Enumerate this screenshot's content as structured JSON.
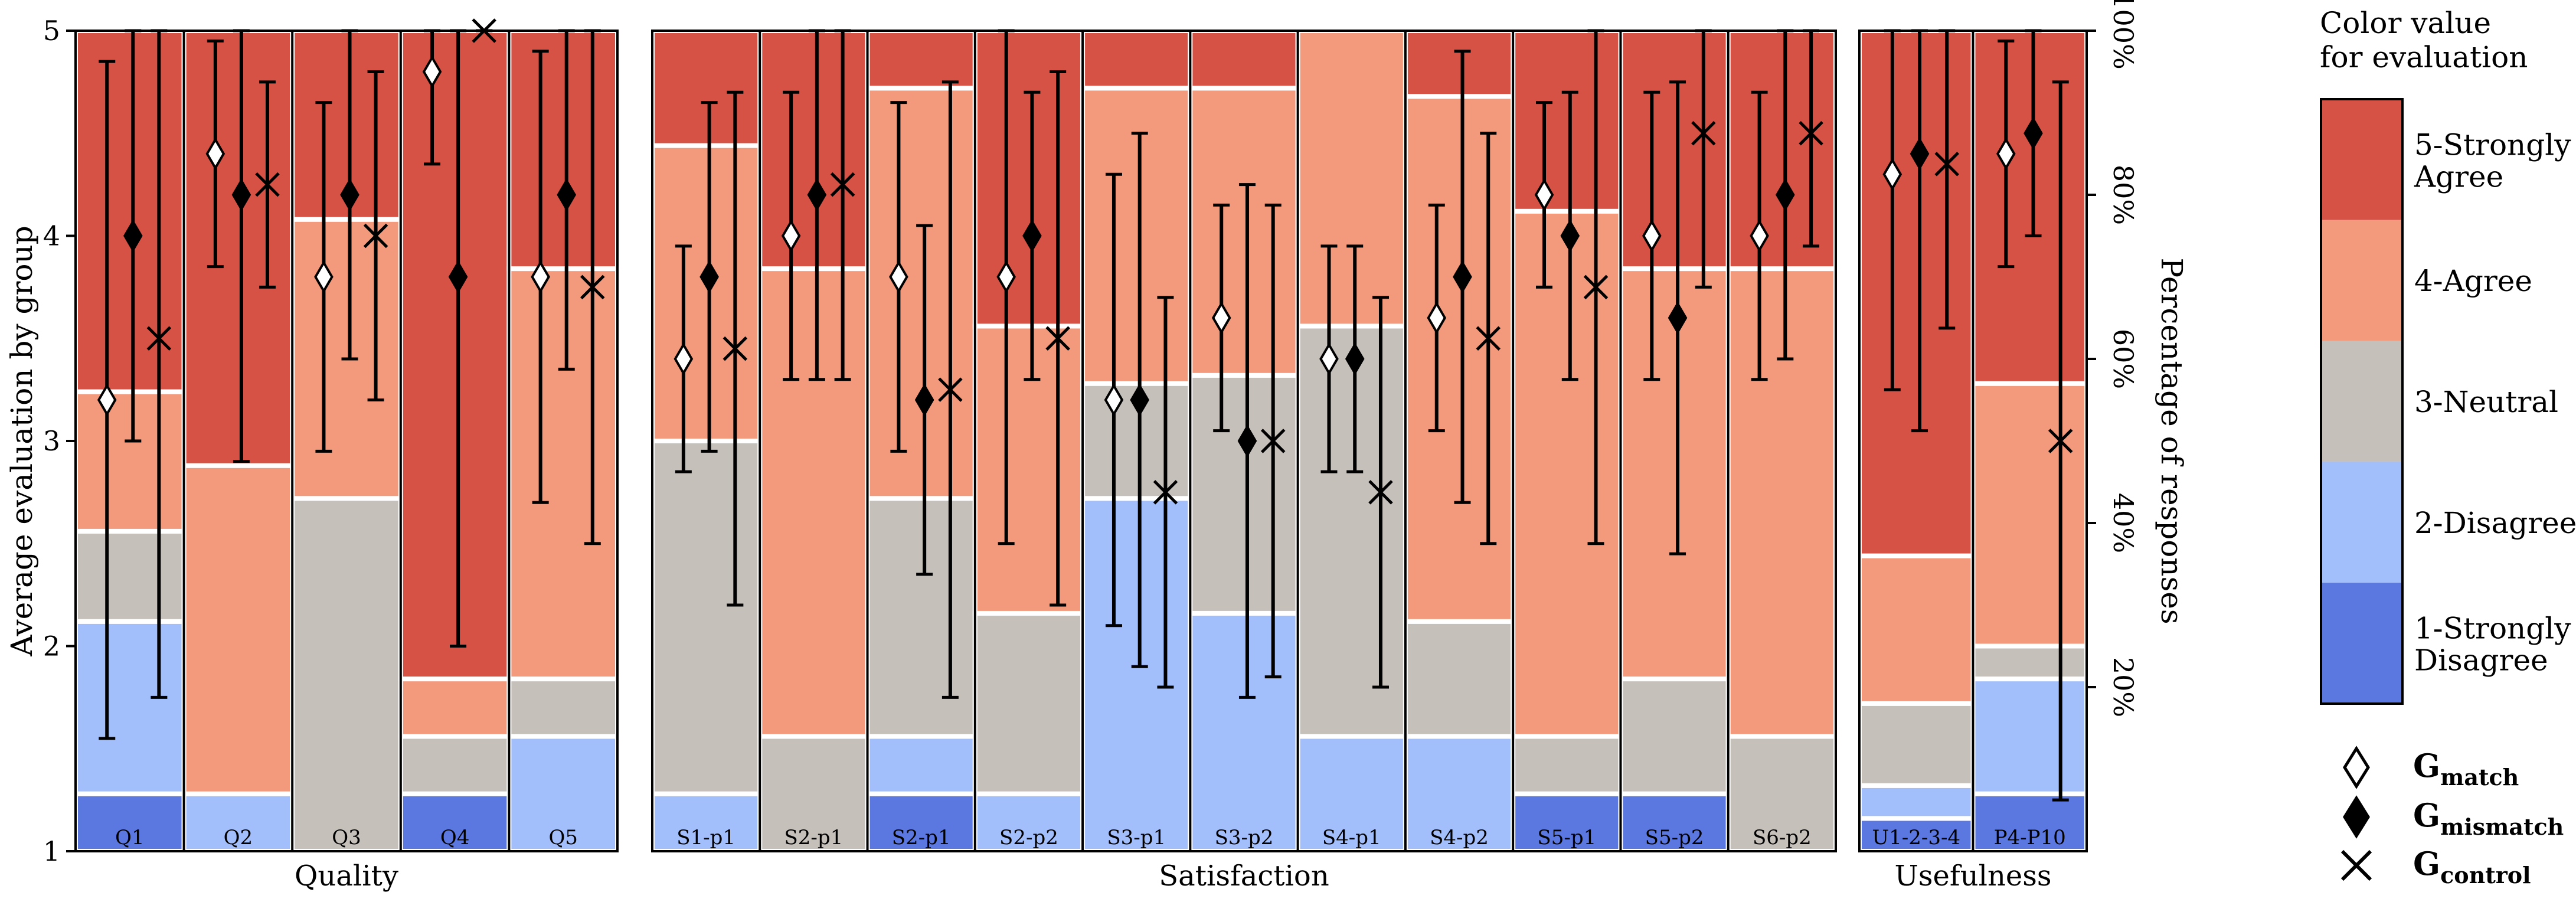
{
  "chart_data": {
    "type": "stacked-bar-with-errorbars",
    "ylabel_left": "Average evaluation by group",
    "ylabel_right": "Percentage of responses",
    "ylim": [
      1,
      5
    ],
    "yticks_left": [
      "1",
      "2",
      "3",
      "4",
      "5"
    ],
    "yticks_right": [
      "20%",
      "40%",
      "60%",
      "80%",
      "100%"
    ],
    "colors": {
      "1": "#5b77e0",
      "2": "#a2bffc",
      "3": "#c6c0bb",
      "4": "#f29a7b",
      "5": "#d65245"
    },
    "colorbar": {
      "title_line1": "Color value",
      "title_line2": "for evaluation",
      "labels": [
        {
          "level": 5,
          "line1": "5-Strongly",
          "line2": "Agree"
        },
        {
          "level": 4,
          "line1": "4-Agree",
          "line2": ""
        },
        {
          "level": 3,
          "line1": "3-Neutral",
          "line2": ""
        },
        {
          "level": 2,
          "line1": "2-Disagree",
          "line2": ""
        },
        {
          "level": 1,
          "line1": "1-Strongly",
          "line2": "Disagree"
        }
      ]
    },
    "legend": [
      {
        "marker": "diamond-open",
        "label": "G",
        "sub": "match"
      },
      {
        "marker": "diamond-filled",
        "label": "G",
        "sub": "mismatch"
      },
      {
        "marker": "x",
        "label": "G",
        "sub": "control"
      }
    ],
    "groups": [
      {
        "name": "Quality",
        "bars": [
          {
            "label": "Q1",
            "pct": [
              7,
              21,
              11,
              17,
              44
            ],
            "match": {
              "mean": 3.2,
              "lo": 1.55,
              "hi": 4.85
            },
            "mismatch": {
              "mean": 4.0,
              "lo": 3.0,
              "hi": 5.0
            },
            "control": {
              "mean": 3.5,
              "lo": 1.75,
              "hi": 5.0
            }
          },
          {
            "label": "Q2",
            "pct": [
              0,
              7,
              0,
              40,
              53
            ],
            "match": {
              "mean": 4.4,
              "lo": 3.85,
              "hi": 4.95
            },
            "mismatch": {
              "mean": 4.2,
              "lo": 2.9,
              "hi": 5.0
            },
            "control": {
              "mean": 4.25,
              "lo": 3.75,
              "hi": 4.75
            }
          },
          {
            "label": "Q3",
            "pct": [
              0,
              0,
              43,
              34,
              23
            ],
            "match": {
              "mean": 3.8,
              "lo": 2.95,
              "hi": 4.65
            },
            "mismatch": {
              "mean": 4.2,
              "lo": 3.4,
              "hi": 5.0
            },
            "control": {
              "mean": 4.0,
              "lo": 3.2,
              "hi": 4.8
            }
          },
          {
            "label": "Q4",
            "pct": [
              7,
              0,
              7,
              7,
              79
            ],
            "match": {
              "mean": 4.8,
              "lo": 4.35,
              "hi": 5.0
            },
            "mismatch": {
              "mean": 3.8,
              "lo": 2.0,
              "hi": 5.0
            },
            "control": {
              "mean": 5.0,
              "lo": 5.0,
              "hi": 5.0
            }
          },
          {
            "label": "Q5",
            "pct": [
              0,
              14,
              7,
              50,
              29
            ],
            "match": {
              "mean": 3.8,
              "lo": 2.7,
              "hi": 4.9
            },
            "mismatch": {
              "mean": 4.2,
              "lo": 3.35,
              "hi": 5.0
            },
            "control": {
              "mean": 3.75,
              "lo": 2.5,
              "hi": 5.0
            }
          }
        ]
      },
      {
        "name": "Satisfaction",
        "bars": [
          {
            "label": "S1-p1",
            "pct": [
              0,
              7,
              43,
              36,
              14
            ],
            "match": {
              "mean": 3.4,
              "lo": 2.85,
              "hi": 3.95
            },
            "mismatch": {
              "mean": 3.8,
              "lo": 2.95,
              "hi": 4.65
            },
            "control": {
              "mean": 3.45,
              "lo": 2.2,
              "hi": 4.7
            }
          },
          {
            "label": "S2-p1",
            "pct": [
              0,
              0,
              14,
              57,
              29
            ],
            "match": {
              "mean": 4.0,
              "lo": 3.3,
              "hi": 4.7
            },
            "mismatch": {
              "mean": 4.2,
              "lo": 3.3,
              "hi": 5.0
            },
            "control": {
              "mean": 4.25,
              "lo": 3.3,
              "hi": 5.0
            }
          },
          {
            "label": "S2-p1",
            "pct": [
              7,
              7,
              29,
              50,
              7
            ],
            "match": {
              "mean": 3.8,
              "lo": 2.95,
              "hi": 4.65
            },
            "mismatch": {
              "mean": 3.2,
              "lo": 2.35,
              "hi": 4.05
            },
            "control": {
              "mean": 3.25,
              "lo": 1.75,
              "hi": 4.75
            }
          },
          {
            "label": "S2-p2",
            "pct": [
              0,
              7,
              22,
              35,
              36
            ],
            "match": {
              "mean": 3.8,
              "lo": 2.5,
              "hi": 5.0
            },
            "mismatch": {
              "mean": 4.0,
              "lo": 3.3,
              "hi": 4.7
            },
            "control": {
              "mean": 3.5,
              "lo": 2.2,
              "hi": 4.8
            }
          },
          {
            "label": "S3-p1",
            "pct": [
              0,
              43,
              14,
              36,
              7
            ],
            "match": {
              "mean": 3.2,
              "lo": 2.1,
              "hi": 4.3
            },
            "mismatch": {
              "mean": 3.2,
              "lo": 1.9,
              "hi": 4.5
            },
            "control": {
              "mean": 2.75,
              "lo": 1.8,
              "hi": 3.7
            }
          },
          {
            "label": "S3-p2",
            "pct": [
              0,
              29,
              29,
              35,
              7
            ],
            "match": {
              "mean": 3.6,
              "lo": 3.05,
              "hi": 4.15
            },
            "mismatch": {
              "mean": 3.0,
              "lo": 1.75,
              "hi": 4.25
            },
            "control": {
              "mean": 3.0,
              "lo": 1.85,
              "hi": 4.15
            }
          },
          {
            "label": "S4-p1",
            "pct": [
              0,
              14,
              50,
              36,
              0
            ],
            "match": {
              "mean": 3.4,
              "lo": 2.85,
              "hi": 3.95
            },
            "mismatch": {
              "mean": 3.4,
              "lo": 2.85,
              "hi": 3.95
            },
            "control": {
              "mean": 2.75,
              "lo": 1.8,
              "hi": 3.7
            }
          },
          {
            "label": "S4-p2",
            "pct": [
              0,
              14,
              14,
              64,
              8
            ],
            "match": {
              "mean": 3.6,
              "lo": 3.05,
              "hi": 4.15
            },
            "mismatch": {
              "mean": 3.8,
              "lo": 2.7,
              "hi": 4.9
            },
            "control": {
              "mean": 3.5,
              "lo": 2.5,
              "hi": 4.5
            }
          },
          {
            "label": "S5-p1",
            "pct": [
              7,
              0,
              7,
              64,
              22
            ],
            "match": {
              "mean": 4.2,
              "lo": 3.75,
              "hi": 4.65
            },
            "mismatch": {
              "mean": 4.0,
              "lo": 3.3,
              "hi": 4.7
            },
            "control": {
              "mean": 3.75,
              "lo": 2.5,
              "hi": 5.0
            }
          },
          {
            "label": "S5-p2",
            "pct": [
              7,
              0,
              14,
              50,
              29
            ],
            "match": {
              "mean": 4.0,
              "lo": 3.3,
              "hi": 4.7
            },
            "mismatch": {
              "mean": 3.6,
              "lo": 2.45,
              "hi": 4.75
            },
            "control": {
              "mean": 4.5,
              "lo": 3.75,
              "hi": 5.0
            }
          },
          {
            "label": "S6-p2",
            "pct": [
              0,
              0,
              14,
              57,
              29
            ],
            "match": {
              "mean": 4.0,
              "lo": 3.3,
              "hi": 4.7
            },
            "mismatch": {
              "mean": 4.2,
              "lo": 3.4,
              "hi": 5.0
            },
            "control": {
              "mean": 4.5,
              "lo": 3.95,
              "hi": 5.0
            }
          }
        ]
      },
      {
        "name": "Usefulness",
        "bars": [
          {
            "label": "U1-2-3-4",
            "pct": [
              4,
              4,
              10,
              18,
              64
            ],
            "match": {
              "mean": 4.3,
              "lo": 3.25,
              "hi": 5.0
            },
            "mismatch": {
              "mean": 4.4,
              "lo": 3.05,
              "hi": 5.0
            },
            "control": {
              "mean": 4.35,
              "lo": 3.55,
              "hi": 5.0
            }
          },
          {
            "label": "P4-P10",
            "pct": [
              7,
              14,
              4,
              32,
              43
            ],
            "match": {
              "mean": 4.4,
              "lo": 3.85,
              "hi": 4.95
            },
            "mismatch": {
              "mean": 4.5,
              "lo": 4.0,
              "hi": 5.0
            },
            "control": {
              "mean": 3.0,
              "lo": 1.25,
              "hi": 4.75
            }
          }
        ]
      }
    ]
  }
}
